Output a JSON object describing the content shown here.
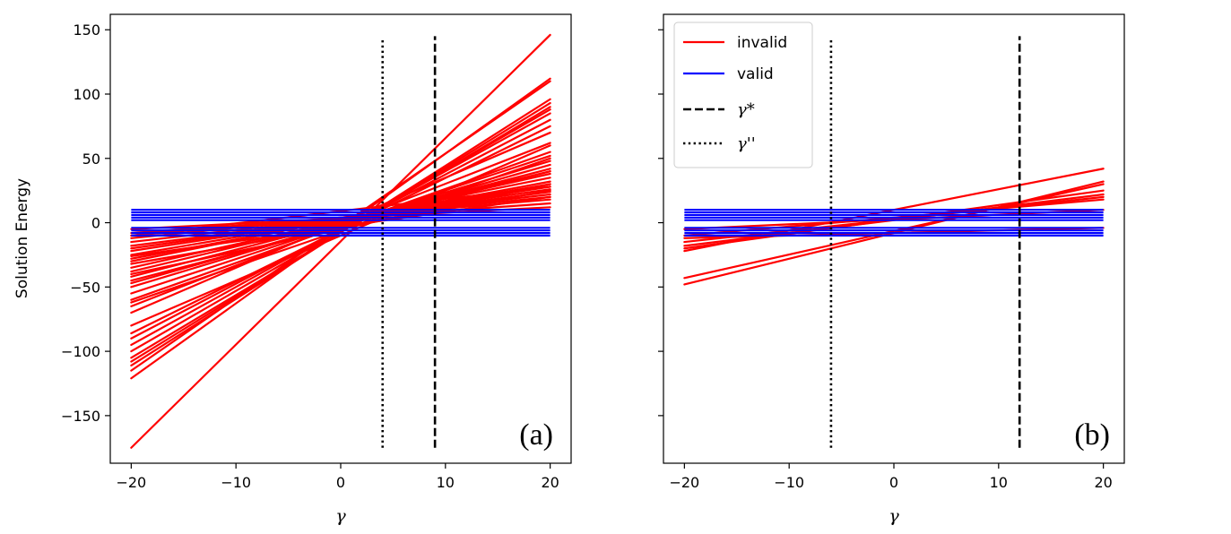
{
  "chart_data": [
    {
      "type": "line",
      "panel_label": "(a)",
      "ylabel": "Solution Energy",
      "xlabel": "γ",
      "xlim": [
        -22,
        22
      ],
      "ylim": [
        -187,
        162
      ],
      "xticks": [
        -20,
        -10,
        0,
        10,
        20
      ],
      "xtick_labels": [
        "−20",
        "−10",
        "0",
        "10",
        "20"
      ],
      "yticks": [
        150,
        100,
        50,
        0,
        -50,
        -100,
        -150
      ],
      "ytick_labels": [
        "150",
        "100",
        "50",
        "0",
        "−50",
        "−100",
        "−150"
      ],
      "show_ytick_labels": true,
      "vlines": [
        {
          "name": "γ''",
          "x": 4,
          "style": "dotted",
          "ymin": -175,
          "ymax": 143
        },
        {
          "name": "γ*",
          "x": 9,
          "style": "dashed",
          "ymin": -175,
          "ymax": 145
        }
      ],
      "series": [
        {
          "name": "invalid",
          "color": "#ff0000",
          "segments": [
            [
              -175,
              146
            ],
            [
              -121,
              112
            ],
            [
              -115,
              110
            ],
            [
              -111,
              96
            ],
            [
              -108,
              93
            ],
            [
              -105,
              90
            ],
            [
              -100,
              88
            ],
            [
              -95,
              85
            ],
            [
              -90,
              80
            ],
            [
              -86,
              75
            ],
            [
              -70,
              70
            ],
            [
              -65,
              62
            ],
            [
              -60,
              55
            ],
            [
              -55,
              52
            ],
            [
              -50,
              48
            ],
            [
              -47,
              45
            ],
            [
              -42,
              42
            ],
            [
              -38,
              40
            ],
            [
              -35,
              38
            ],
            [
              -30,
              35
            ],
            [
              -28,
              32
            ],
            [
              -25,
              30
            ],
            [
              -22,
              28
            ],
            [
              -20,
              26
            ],
            [
              -18,
              24
            ],
            [
              -15,
              22
            ],
            [
              -12,
              20
            ],
            [
              -10,
              18
            ],
            [
              -8,
              15
            ],
            [
              -5,
              12
            ],
            [
              -32,
              25
            ],
            [
              -40,
              30
            ],
            [
              -26,
              20
            ],
            [
              -45,
              40
            ],
            [
              -62,
              50
            ],
            [
              -80,
              60
            ],
            [
              -10,
              28
            ]
          ]
        },
        {
          "name": "valid",
          "color": "#0000ff",
          "values": [
            10,
            8,
            6,
            4,
            2,
            -4,
            -6,
            -8,
            -10
          ]
        }
      ]
    },
    {
      "type": "line",
      "panel_label": "(b)",
      "xlabel": "γ",
      "xlim": [
        -22,
        22
      ],
      "ylim": [
        -187,
        162
      ],
      "xticks": [
        -20,
        -10,
        0,
        10,
        20
      ],
      "xtick_labels": [
        "−20",
        "−10",
        "0",
        "10",
        "20"
      ],
      "yticks": [
        150,
        100,
        50,
        0,
        -50,
        -100,
        -150
      ],
      "show_ytick_labels": false,
      "vlines": [
        {
          "name": "γ''",
          "x": -6,
          "style": "dotted",
          "ymin": -175,
          "ymax": 143
        },
        {
          "name": "γ*",
          "x": 12,
          "style": "dashed",
          "ymin": -175,
          "ymax": 145
        }
      ],
      "series": [
        {
          "name": "invalid",
          "color": "#ff0000",
          "segments": [
            [
              -48,
              32
            ],
            [
              -43,
              30
            ],
            [
              -22,
              42
            ],
            [
              -20,
              25
            ],
            [
              -18,
              22
            ],
            [
              -15,
              20
            ],
            [
              -12,
              -4
            ],
            [
              -5,
              10
            ],
            [
              -10,
              18
            ]
          ]
        },
        {
          "name": "valid",
          "color": "#0000ff",
          "values": [
            10,
            8,
            6,
            4,
            2,
            -4,
            -6,
            -8,
            -10
          ]
        }
      ],
      "legend": {
        "location": "upper-left",
        "entries": [
          {
            "label": "invalid",
            "color": "#ff0000",
            "style": "solid"
          },
          {
            "label": "valid",
            "color": "#0000ff",
            "style": "solid"
          },
          {
            "label": "γ*",
            "color": "#000000",
            "style": "dashed"
          },
          {
            "label": "γ''",
            "color": "#000000",
            "style": "dotted"
          }
        ]
      }
    }
  ]
}
